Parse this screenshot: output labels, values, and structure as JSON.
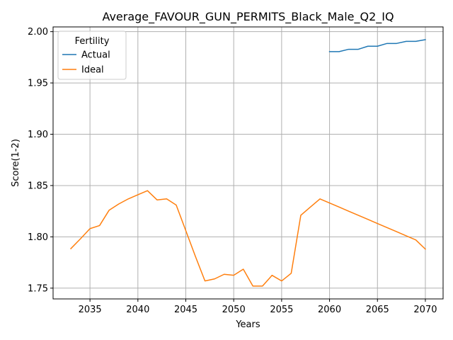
{
  "chart_data": {
    "type": "line",
    "title": "Average_FAVOUR_GUN_PERMITS_Black_Male_Q2_IQ",
    "xlabel": "Years",
    "ylabel": "Score(1-2)",
    "xlim": [
      2031.15,
      2071.85
    ],
    "ylim": [
      1.7395,
      2.0046
    ],
    "xticks": [
      2035,
      2040,
      2045,
      2050,
      2055,
      2060,
      2065,
      2070
    ],
    "xtick_labels": [
      "2035",
      "2040",
      "2045",
      "2050",
      "2055",
      "2060",
      "2065",
      "2070"
    ],
    "yticks": [
      1.75,
      1.8,
      1.85,
      1.9,
      1.95,
      2.0
    ],
    "ytick_labels": [
      "1.75",
      "1.80",
      "1.85",
      "1.90",
      "1.95",
      "2.00"
    ],
    "grid": true,
    "legend": {
      "title": "Fertility",
      "position": "top-left"
    },
    "series": [
      {
        "name": "Actual",
        "color": "#1f77b4",
        "x": [
          2060,
          2061,
          2062,
          2063,
          2064,
          2065,
          2066,
          2067,
          2068,
          2069,
          2070
        ],
        "values": [
          1.9805,
          1.9805,
          1.9828,
          1.9828,
          1.9858,
          1.9858,
          1.9885,
          1.9885,
          1.9905,
          1.9905,
          1.9922
        ]
      },
      {
        "name": "Ideal",
        "color": "#ff7f0e",
        "x": [
          2033,
          2034,
          2035,
          2036,
          2037,
          2038,
          2039,
          2040,
          2041,
          2042,
          2043,
          2044,
          2045,
          2046,
          2047,
          2048,
          2049,
          2050,
          2051,
          2052,
          2053,
          2054,
          2055,
          2056,
          2057,
          2058,
          2059,
          2060,
          2061,
          2062,
          2063,
          2064,
          2065,
          2066,
          2067,
          2068,
          2069,
          2070
        ],
        "values": [
          1.7885,
          1.798,
          1.808,
          1.811,
          1.826,
          1.832,
          1.837,
          1.841,
          1.845,
          1.836,
          1.837,
          1.831,
          1.806,
          1.781,
          1.757,
          1.759,
          1.7635,
          1.7625,
          1.7685,
          1.752,
          1.752,
          1.7625,
          1.757,
          1.7645,
          1.821,
          1.829,
          1.837,
          1.833,
          1.829,
          1.825,
          1.821,
          1.817,
          1.813,
          1.809,
          1.805,
          1.801,
          1.797,
          1.788
        ]
      }
    ]
  }
}
